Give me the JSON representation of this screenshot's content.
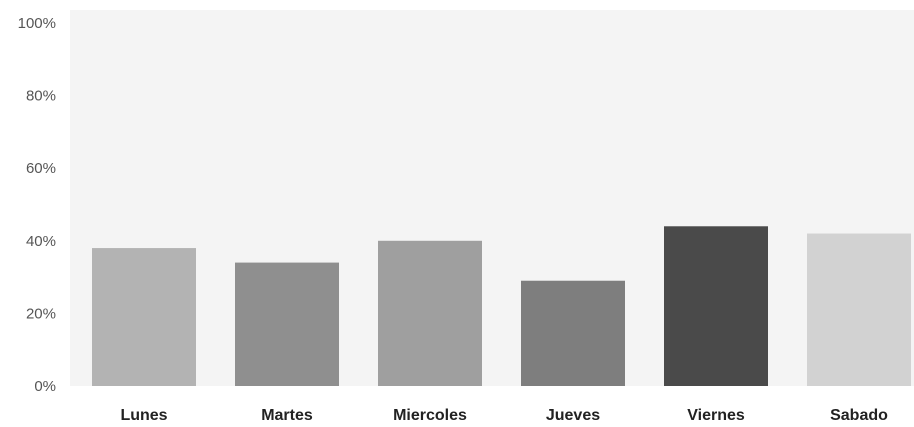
{
  "chart_data": {
    "type": "bar",
    "title": "",
    "xlabel": "",
    "ylabel": "",
    "categories": [
      "Lunes",
      "Martes",
      "Miercoles",
      "Jueves",
      "Viernes",
      "Sabado"
    ],
    "values": [
      38,
      34,
      40,
      29,
      44,
      42
    ],
    "bar_colors": [
      "#b3b3b3",
      "#8f8f8f",
      "#9f9f9f",
      "#7e7e7e",
      "#4a4a4a",
      "#d2d2d2"
    ],
    "ylim": [
      0,
      100
    ],
    "yticks": [
      0,
      20,
      40,
      60,
      80,
      100
    ],
    "ytick_labels": [
      "0%",
      "20%",
      "40%",
      "60%",
      "80%",
      "100%"
    ],
    "grid": false,
    "legend": "none"
  }
}
